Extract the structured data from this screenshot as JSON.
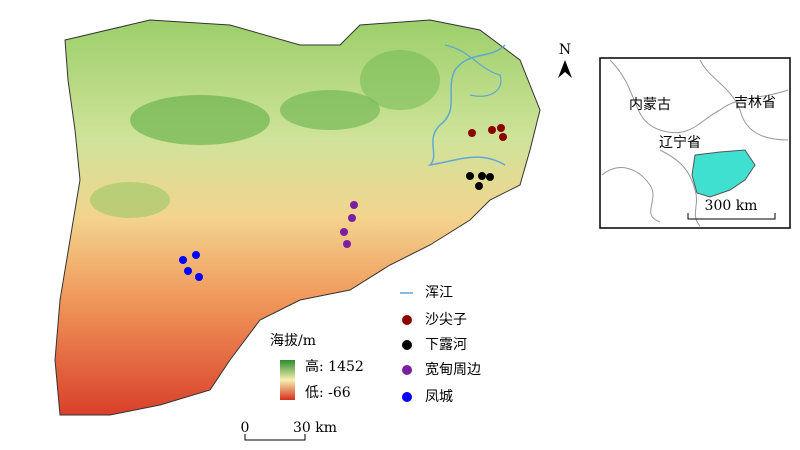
{
  "north": "N",
  "inset": {
    "labels": [
      "内蒙古",
      "吉林省",
      "辽宁省"
    ],
    "scale": "300 km"
  },
  "legend": {
    "items": [
      "浑江",
      "沙尖子",
      "下露河",
      "宽甸周边",
      "凤城"
    ]
  },
  "elevation": {
    "title": "海拔/m",
    "high": "高: 1452",
    "low": "低: -66"
  },
  "scale_bar": {
    "start": "0",
    "end": "30 km"
  }
}
